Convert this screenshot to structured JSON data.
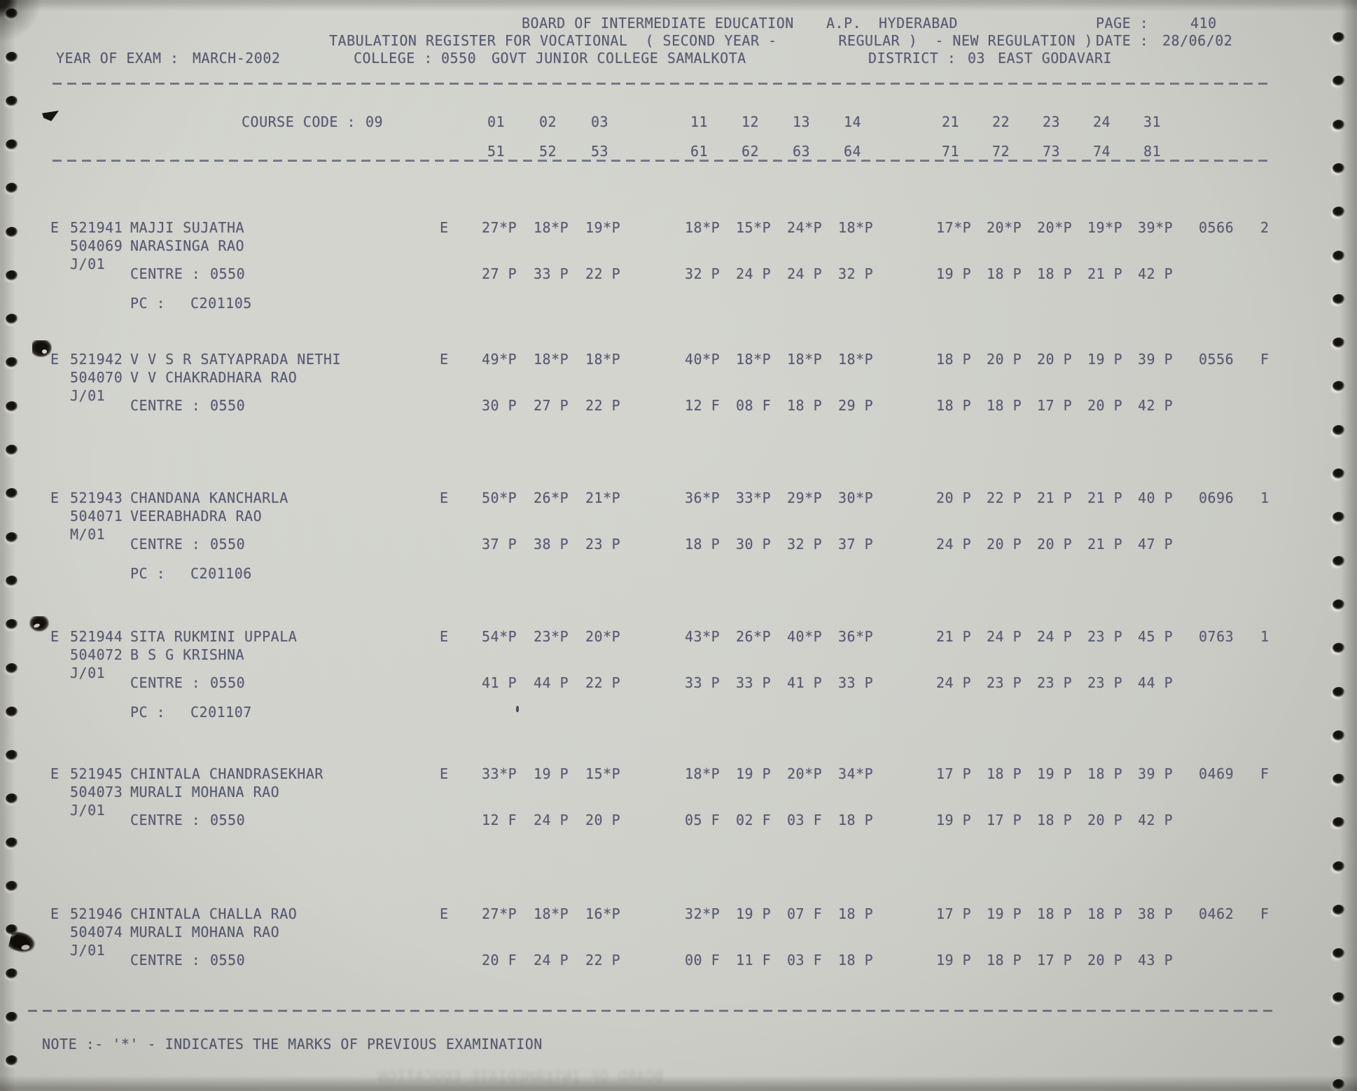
{
  "page": {
    "title_board": "BOARD OF INTERMEDIATE EDUCATION",
    "title_region": "A.P.",
    "title_city": "HYDERABAD",
    "page_label": "PAGE :",
    "page_number": "410",
    "register_line": "TABULATION REGISTER FOR VOCATIONAL  ( SECOND YEAR -       REGULAR )  - NEW REGULATION )",
    "date_label": "DATE :",
    "date_value": "28/06/02",
    "year_label": "YEAR OF EXAM :",
    "year_value": "MARCH-2002",
    "college_label": "COLLEGE :",
    "college_code": "0550",
    "college_name": "GOVT JUNIOR COLLEGE SAMALKOTA",
    "district_label": "DISTRICT :",
    "district_code": "03",
    "district_name": "EAST GODAVARI",
    "course_code_label": "COURSE CODE :",
    "course_code": "09",
    "note": "NOTE :- '*' - INDICATES THE MARKS OF PREVIOUS EXAMINATION"
  },
  "subject_codes": {
    "row1": [
      "01",
      "02",
      "03",
      "11",
      "12",
      "13",
      "14",
      "21",
      "22",
      "23",
      "24",
      "31"
    ],
    "row2": [
      "51",
      "52",
      "53",
      "61",
      "62",
      "63",
      "64",
      "71",
      "72",
      "73",
      "74",
      "81"
    ]
  },
  "records": [
    {
      "flag": "E",
      "reg_no": "521941",
      "name": "MAJJI SUJATHA",
      "alt_no": "504069",
      "father_name": "NARASINGA RAO",
      "month": "J/01",
      "medium": "E",
      "centre_label": "CENTRE :",
      "centre": "0550",
      "pc_label": "PC :",
      "pc": "C201105",
      "row1": {
        "a": [
          "27*P",
          "18*P",
          "19*P"
        ],
        "b": [
          "18*P",
          "15*P",
          "24*P",
          "18*P"
        ],
        "c": [
          "17*P",
          "20*P",
          "20*P",
          "19*P",
          "39*P"
        ],
        "total": "0566",
        "result": "2"
      },
      "row2": {
        "a": [
          "27 P",
          "33 P",
          "22 P"
        ],
        "b": [
          "32 P",
          "24 P",
          "24 P",
          "32 P"
        ],
        "c": [
          "19 P",
          "18 P",
          "18 P",
          "21 P",
          "42 P"
        ]
      }
    },
    {
      "flag": "E",
      "reg_no": "521942",
      "name": "V V S R SATYAPRADA NETHI",
      "alt_no": "504070",
      "father_name": "V V CHAKRADHARA RAO",
      "month": "J/01",
      "medium": "E",
      "centre_label": "CENTRE :",
      "centre": "0550",
      "row1": {
        "a": [
          "49*P",
          "18*P",
          "18*P"
        ],
        "b": [
          "40*P",
          "18*P",
          "18*P",
          "18*P"
        ],
        "c": [
          "18 P",
          "20 P",
          "20 P",
          "19 P",
          "39 P"
        ],
        "total": "0556",
        "result": "F"
      },
      "row2": {
        "a": [
          "30 P",
          "27 P",
          "22 P"
        ],
        "b": [
          "12 F",
          "08 F",
          "18 P",
          "29 P"
        ],
        "c": [
          "18 P",
          "18 P",
          "17 P",
          "20 P",
          "42 P"
        ]
      }
    },
    {
      "flag": "E",
      "reg_no": "521943",
      "name": "CHANDANA KANCHARLA",
      "alt_no": "504071",
      "father_name": "VEERABHADRA RAO",
      "month": "M/01",
      "medium": "E",
      "centre_label": "CENTRE :",
      "centre": "0550",
      "pc_label": "PC :",
      "pc": "C201106",
      "row1": {
        "a": [
          "50*P",
          "26*P",
          "21*P"
        ],
        "b": [
          "36*P",
          "33*P",
          "29*P",
          "30*P"
        ],
        "c": [
          "20 P",
          "22 P",
          "21 P",
          "21 P",
          "40 P"
        ],
        "total": "0696",
        "result": "1"
      },
      "row2": {
        "a": [
          "37 P",
          "38 P",
          "23 P"
        ],
        "b": [
          "18 P",
          "30 P",
          "32 P",
          "37 P"
        ],
        "c": [
          "24 P",
          "20 P",
          "20 P",
          "21 P",
          "47 P"
        ]
      }
    },
    {
      "flag": "E",
      "reg_no": "521944",
      "name": "SITA RUKMINI UPPALA",
      "alt_no": "504072",
      "father_name": "B S G KRISHNA",
      "month": "J/01",
      "medium": "E",
      "centre_label": "CENTRE :",
      "centre": "0550",
      "pc_label": "PC :",
      "pc": "C201107",
      "row1": {
        "a": [
          "54*P",
          "23*P",
          "20*P"
        ],
        "b": [
          "43*P",
          "26*P",
          "40*P",
          "36*P"
        ],
        "c": [
          "21 P",
          "24 P",
          "24 P",
          "23 P",
          "45 P"
        ],
        "total": "0763",
        "result": "1"
      },
      "row2": {
        "a": [
          "41 P",
          "44 P",
          "22 P"
        ],
        "b": [
          "33 P",
          "33 P",
          "41 P",
          "33 P"
        ],
        "c": [
          "24 P",
          "23 P",
          "23 P",
          "23 P",
          "44 P"
        ]
      }
    },
    {
      "flag": "E",
      "reg_no": "521945",
      "name": "CHINTALA CHANDRASEKHAR",
      "alt_no": "504073",
      "father_name": "MURALI MOHANA RAO",
      "month": "J/01",
      "medium": "E",
      "centre_label": "CENTRE :",
      "centre": "0550",
      "row1": {
        "a": [
          "33*P",
          "19 P",
          "15*P"
        ],
        "b": [
          "18*P",
          "19 P",
          "20*P",
          "34*P"
        ],
        "c": [
          "17 P",
          "18 P",
          "19 P",
          "18 P",
          "39 P"
        ],
        "total": "0469",
        "result": "F"
      },
      "row2": {
        "a": [
          "12 F",
          "24 P",
          "20 P"
        ],
        "b": [
          "05 F",
          "02 F",
          "03 F",
          "18 P"
        ],
        "c": [
          "19 P",
          "17 P",
          "18 P",
          "20 P",
          "42 P"
        ]
      }
    },
    {
      "flag": "E",
      "reg_no": "521946",
      "name": "CHINTALA CHALLA RAO",
      "alt_no": "504074",
      "father_name": "MURALI MOHANA RAO",
      "month": "J/01",
      "medium": "E",
      "centre_label": "CENTRE :",
      "centre": "0550",
      "row1": {
        "a": [
          "27*P",
          "18*P",
          "16*P"
        ],
        "b": [
          "32*P",
          "19 P",
          "07 F",
          "18 P"
        ],
        "c": [
          "17 P",
          "19 P",
          "18 P",
          "18 P",
          "38 P"
        ],
        "total": "0462",
        "result": "F"
      },
      "row2": {
        "a": [
          "20 F",
          "24 P",
          "22 P"
        ],
        "b": [
          "00 F",
          "11 F",
          "03 F",
          "18 P"
        ],
        "c": [
          "19 P",
          "18 P",
          "17 P",
          "20 P",
          "43 P"
        ]
      }
    }
  ],
  "colors": {
    "ink": "#575a72",
    "paper": "#d3d4cf"
  }
}
